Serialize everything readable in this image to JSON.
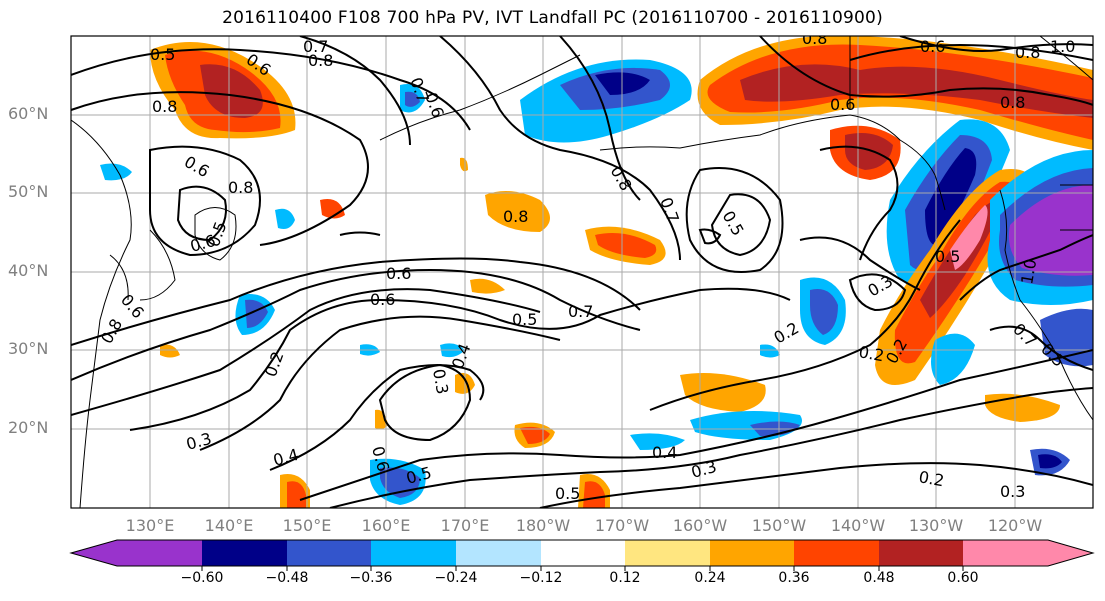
{
  "title": "2016110400 F108 700 hPa PV, IVT Landfall PC (2016110700 - 2016110900)",
  "lat_labels": [
    "60°N",
    "50°N",
    "40°N",
    "30°N",
    "20°N"
  ],
  "lon_labels": [
    "130°E",
    "140°E",
    "150°E",
    "160°E",
    "170°E",
    "180°W",
    "170°W",
    "160°W",
    "150°W",
    "140°W",
    "130°W",
    "120°W"
  ],
  "colorbar": {
    "ticks": [
      "−0.60",
      "−0.48",
      "−0.36",
      "−0.24",
      "−0.12",
      "0.12",
      "0.24",
      "0.36",
      "0.48",
      "0.60"
    ],
    "colors": [
      "#9933cc",
      "#000088",
      "#3355cc",
      "#00bbff",
      "#b3e5ff",
      "#ffffff",
      "#ffe680",
      "#ffa500",
      "#ff4400",
      "#b22222",
      "#ff88aa"
    ]
  },
  "contour_labels": [
    "0.5",
    "0.6",
    "0.7",
    "0.8",
    "0.8",
    "0.7",
    "0.6",
    "0.8",
    "0.6",
    "0.8",
    "1.0",
    "0.8",
    "0.6",
    "0.8",
    "0.5",
    "0.7",
    "0.8",
    "0.6",
    "0.8",
    "0.6",
    "0.5",
    "0.6",
    "0.6",
    "0.7",
    "0.5",
    "0.4",
    "0.3",
    "0.2",
    "0.3",
    "0.4",
    "0.5",
    "0.6",
    "0.5",
    "0.4",
    "0.3",
    "0.2",
    "0.3",
    "0.2",
    "0.2",
    "0.2",
    "0.3",
    "0.5",
    "0.7",
    "0.5",
    "1.0",
    "0.8",
    "0.6"
  ]
}
